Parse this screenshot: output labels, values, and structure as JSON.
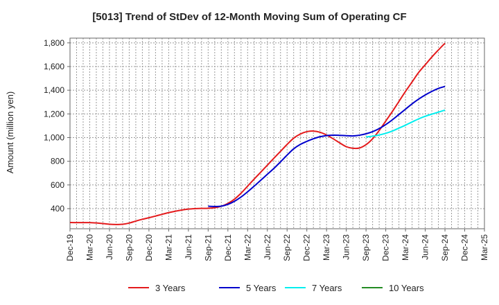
{
  "chart_data": {
    "type": "line",
    "title": "[5013]  Trend of StDev of 12-Month Moving Sum of Operating CF",
    "xlabel": "",
    "ylabel": "Amount (million yen)",
    "ylim": [
      230,
      1840
    ],
    "yticks": [
      400,
      600,
      800,
      1000,
      1200,
      1400,
      1600,
      1800
    ],
    "ytick_labels": [
      "400",
      "600",
      "800",
      "1,000",
      "1,200",
      "1,400",
      "1,600",
      "1,800"
    ],
    "x_range": [
      "Dec-19",
      "Mar-25"
    ],
    "xticks": [
      "Dec-19",
      "Mar-20",
      "Jun-20",
      "Sep-20",
      "Dec-20",
      "Mar-21",
      "Jun-21",
      "Sep-21",
      "Dec-21",
      "Mar-22",
      "Jun-22",
      "Sep-22",
      "Dec-22",
      "Mar-23",
      "Jun-23",
      "Sep-23",
      "Dec-23",
      "Mar-24",
      "Jun-24",
      "Sep-24",
      "Dec-24",
      "Mar-25"
    ],
    "grid": true,
    "legend_position": "bottom",
    "series": [
      {
        "name": "3 Years",
        "color": "#e41a1c",
        "x": [
          "Dec-19",
          "Jan-20",
          "Feb-20",
          "Mar-20",
          "Apr-20",
          "May-20",
          "Jun-20",
          "Jul-20",
          "Aug-20",
          "Sep-20",
          "Oct-20",
          "Nov-20",
          "Dec-20",
          "Jan-21",
          "Feb-21",
          "Mar-21",
          "Apr-21",
          "May-21",
          "Jun-21",
          "Jul-21",
          "Aug-21",
          "Sep-21",
          "Oct-21",
          "Nov-21",
          "Dec-21",
          "Jan-22",
          "Feb-22",
          "Mar-22",
          "Apr-22",
          "May-22",
          "Jun-22",
          "Jul-22",
          "Aug-22",
          "Sep-22",
          "Oct-22",
          "Nov-22",
          "Dec-22",
          "Jan-23",
          "Feb-23",
          "Mar-23",
          "Apr-23",
          "May-23",
          "Jun-23",
          "Jul-23",
          "Aug-23",
          "Sep-23",
          "Oct-23",
          "Nov-23",
          "Dec-23",
          "Jan-24",
          "Feb-24",
          "Mar-24",
          "Apr-24",
          "May-24",
          "Jun-24",
          "Jul-24",
          "Aug-24",
          "Sep-24"
        ],
        "values": [
          283,
          282,
          282,
          282,
          279,
          274,
          268,
          266,
          268,
          278,
          295,
          310,
          323,
          337,
          352,
          366,
          378,
          388,
          396,
          400,
          402,
          403,
          408,
          420,
          444,
          480,
          530,
          590,
          650,
          708,
          767,
          826,
          884,
          942,
          995,
          1030,
          1050,
          1055,
          1045,
          1022,
          990,
          955,
          923,
          910,
          912,
          940,
          990,
          1060,
          1140,
          1220,
          1305,
          1390,
          1470,
          1550,
          1615,
          1680,
          1740,
          1797
        ]
      },
      {
        "name": "5 Years",
        "color": "#0000cc",
        "x": [
          "Sep-21",
          "Oct-21",
          "Nov-21",
          "Dec-21",
          "Jan-22",
          "Feb-22",
          "Mar-22",
          "Apr-22",
          "May-22",
          "Jun-22",
          "Jul-22",
          "Aug-22",
          "Sep-22",
          "Oct-22",
          "Nov-22",
          "Dec-22",
          "Jan-23",
          "Feb-23",
          "Mar-23",
          "Apr-23",
          "May-23",
          "Jun-23",
          "Jul-23",
          "Aug-23",
          "Sep-23",
          "Oct-23",
          "Nov-23",
          "Dec-23",
          "Jan-24",
          "Feb-24",
          "Mar-24",
          "Apr-24",
          "May-24",
          "Jun-24",
          "Jul-24",
          "Aug-24",
          "Sep-24"
        ],
        "values": [
          420,
          418,
          421,
          436,
          462,
          498,
          542,
          590,
          640,
          690,
          740,
          795,
          852,
          905,
          942,
          968,
          990,
          1007,
          1017,
          1020,
          1019,
          1016,
          1014,
          1020,
          1032,
          1050,
          1076,
          1110,
          1150,
          1195,
          1240,
          1285,
          1325,
          1360,
          1390,
          1415,
          1432
        ]
      },
      {
        "name": "7 Years",
        "color": "#00eeee",
        "x": [
          "Sep-23",
          "Oct-23",
          "Nov-23",
          "Dec-23",
          "Jan-24",
          "Feb-24",
          "Mar-24",
          "Apr-24",
          "May-24",
          "Jun-24",
          "Jul-24",
          "Aug-24",
          "Sep-24"
        ],
        "values": [
          1005,
          1012,
          1022,
          1036,
          1055,
          1080,
          1105,
          1132,
          1158,
          1180,
          1198,
          1215,
          1232
        ]
      },
      {
        "name": "10 Years",
        "color": "#228b22",
        "x": [],
        "values": []
      }
    ]
  }
}
